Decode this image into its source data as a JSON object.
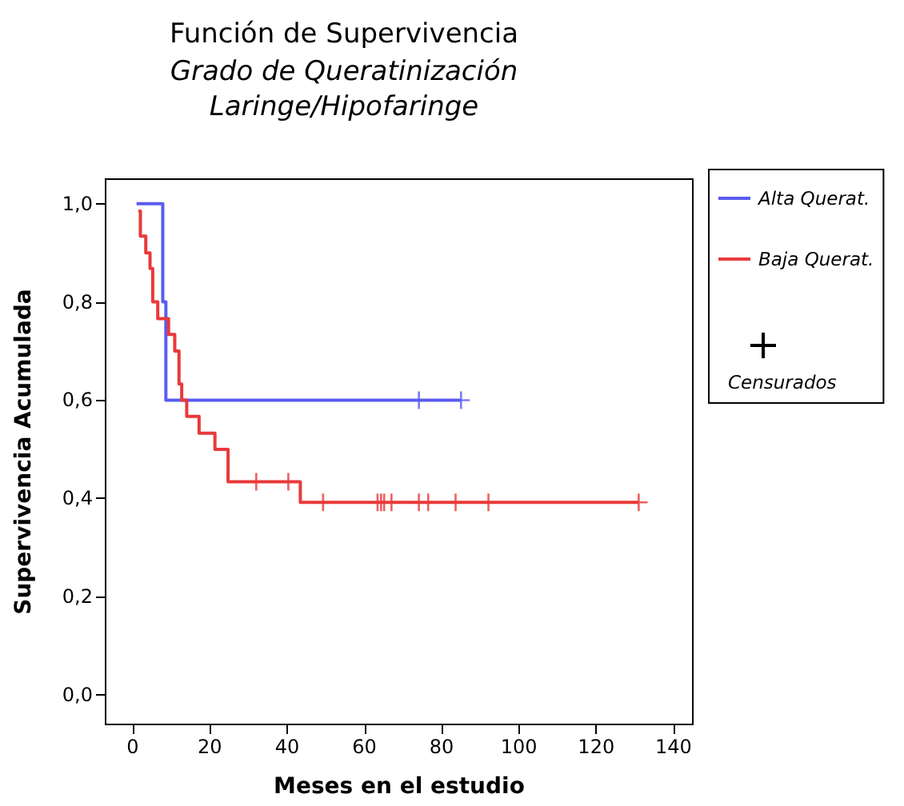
{
  "chart_data": {
    "type": "step",
    "title": "Función de Supervivencia",
    "subtitle": "Grado de Queratinización\nLaringe/Hipofaringe",
    "xlabel": "Meses en el estudio",
    "ylabel": "Supervivencia Acumulada",
    "xlim": [
      -7,
      145
    ],
    "xticks": [
      0,
      20,
      40,
      60,
      80,
      100,
      120,
      140
    ],
    "ylim": [
      -0.06,
      1.05
    ],
    "yticks": [
      {
        "value": 0,
        "label": "0,0"
      },
      {
        "value": 0.2,
        "label": "0,2"
      },
      {
        "value": 0.4,
        "label": "0,4"
      },
      {
        "value": 0.6,
        "label": "0,6"
      },
      {
        "value": 0.8,
        "label": "0,8"
      },
      {
        "value": 1,
        "label": "1,0"
      }
    ],
    "grid": false,
    "legend": "right",
    "series": [
      {
        "name": "Alta Querat.",
        "color": "#5a5cf0",
        "marker": "none",
        "x": [
          1,
          7.8,
          8.6,
          85
        ],
        "values": [
          1,
          0.8,
          0.6,
          0.6
        ]
      },
      {
        "name": "Baja Querat.",
        "color": "#e83a3a",
        "marker": "none",
        "x": [
          1.5,
          2,
          3.4,
          4.5,
          5.2,
          6.5,
          9.3,
          10.9,
          12,
          12.7,
          14,
          17.2,
          21.3,
          24.7,
          43.4,
          131
        ],
        "values": [
          0.985,
          0.934,
          0.9,
          0.868,
          0.8,
          0.766,
          0.734,
          0.7,
          0.633,
          0.6,
          0.567,
          0.533,
          0.5,
          0.434,
          0.392,
          0.392
        ]
      },
      {
        "color": "#5a5cf0",
        "type": "scatter",
        "marker": "cross",
        "x": [
          74.1,
          85
        ],
        "values": [
          0.6,
          0.6
        ]
      },
      {
        "color": "#e83a3a",
        "type": "scatter",
        "marker": "cross",
        "x": [
          32,
          40.3,
          49.3,
          63.4,
          64.3,
          65.1,
          67,
          74.1,
          76.5,
          83.6,
          92.1,
          131
        ],
        "values": [
          0.434,
          0.434,
          0.392,
          0.392,
          0.392,
          0.392,
          0.392,
          0.392,
          0.392,
          0.392,
          0.392,
          0.392
        ]
      }
    ],
    "annotations": [
      "Censurados"
    ]
  }
}
